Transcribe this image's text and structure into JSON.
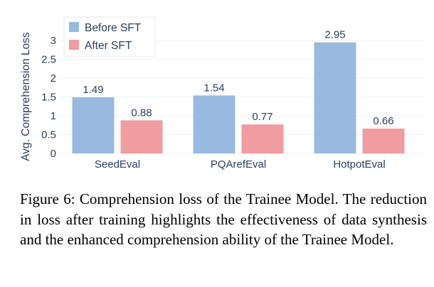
{
  "chart_data": {
    "type": "bar",
    "categories": [
      "SeedEval",
      "PQArefEval",
      "HotpotEval"
    ],
    "series": [
      {
        "name": "Before SFT",
        "color": "#9ab9e0",
        "values": [
          1.49,
          1.54,
          2.95
        ]
      },
      {
        "name": "After SFT",
        "color": "#f09ca0",
        "values": [
          0.88,
          0.77,
          0.66
        ]
      }
    ],
    "data_labels": [
      [
        "1.49",
        "1.54",
        "2.95"
      ],
      [
        "0.88",
        "0.77",
        "0.66"
      ]
    ],
    "ylabel": "Avg. Comprehension Loss",
    "xlabel": "",
    "ylim": [
      0,
      3.1
    ],
    "yticks": [
      0,
      0.5,
      1,
      1.5,
      2,
      2.5,
      3
    ],
    "ytick_labels": [
      "0",
      "0.5",
      "1",
      "1.5",
      "2",
      "2.5",
      "3"
    ],
    "grid": true,
    "legend_placement": "top-left"
  },
  "caption": "Figure 6: Comprehension loss of the Trainee Model. The reduction in loss after training highlights the effec­tiveness of data synthesis and the enhanced comprehen­sion ability of the Trainee Model."
}
